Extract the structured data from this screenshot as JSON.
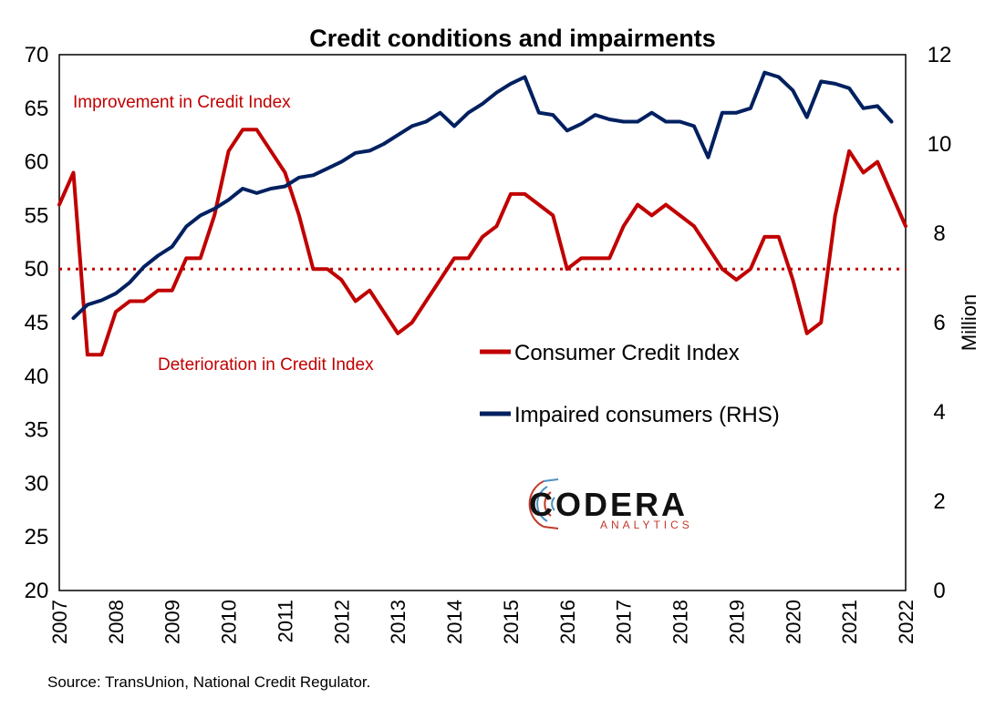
{
  "chart_data": {
    "type": "line",
    "title": "Credit conditions and impairments",
    "x_tick_labels": [
      "2007",
      "2008",
      "2009",
      "2010",
      "2011",
      "2012",
      "2013",
      "2014",
      "2015",
      "2016",
      "2017",
      "2018",
      "2019",
      "2020",
      "2021",
      "2022"
    ],
    "x_range": [
      2007,
      2022
    ],
    "y_left": {
      "range": [
        20,
        70
      ],
      "ticks": [
        20,
        25,
        30,
        35,
        40,
        45,
        50,
        55,
        60,
        65,
        70
      ]
    },
    "y_right": {
      "range": [
        0,
        12
      ],
      "ticks": [
        0,
        2,
        4,
        6,
        8,
        10,
        12
      ],
      "label": "Million"
    },
    "reference_line": {
      "value": 50,
      "axis": "left",
      "style": "dotted",
      "color": "#c00000"
    },
    "annotations": {
      "upper": "Improvement in Credit Index",
      "lower": "Deterioration in Credit Index"
    },
    "legend_position": "center-right",
    "grid": false,
    "series": [
      {
        "name": "Consumer Credit Index",
        "axis": "left",
        "color": "#c00000",
        "x": [
          2007.0,
          2007.25,
          2007.5,
          2007.75,
          2008.0,
          2008.25,
          2008.5,
          2008.75,
          2009.0,
          2009.25,
          2009.5,
          2009.75,
          2010.0,
          2010.25,
          2010.5,
          2010.75,
          2011.0,
          2011.25,
          2011.5,
          2011.75,
          2012.0,
          2012.25,
          2012.5,
          2012.75,
          2013.0,
          2013.25,
          2013.5,
          2013.75,
          2014.0,
          2014.25,
          2014.5,
          2014.75,
          2015.0,
          2015.25,
          2015.5,
          2015.75,
          2016.0,
          2016.25,
          2016.5,
          2016.75,
          2017.0,
          2017.25,
          2017.5,
          2017.75,
          2018.0,
          2018.25,
          2018.5,
          2018.75,
          2019.0,
          2019.25,
          2019.5,
          2019.75,
          2020.0,
          2020.25,
          2020.5,
          2020.75,
          2021.0,
          2021.25,
          2021.5,
          2021.75,
          2022.0
        ],
        "values": [
          56,
          59,
          42,
          42,
          46,
          47,
          47,
          48,
          48,
          51,
          51,
          55,
          61,
          63,
          63,
          61,
          59,
          55,
          50,
          50,
          49,
          47,
          48,
          46,
          44,
          45,
          47,
          49,
          51,
          51,
          53,
          54,
          57,
          57,
          56,
          55,
          50,
          51,
          51,
          51,
          54,
          56,
          55,
          56,
          55,
          54,
          52,
          50,
          49,
          50,
          53,
          53,
          49,
          44,
          45,
          55,
          61,
          59,
          60,
          57,
          54
        ]
      },
      {
        "name": "Impaired consumers (RHS)",
        "axis": "right",
        "color": "#002060",
        "x": [
          2007.25,
          2007.5,
          2007.75,
          2008.0,
          2008.25,
          2008.5,
          2008.75,
          2009.0,
          2009.25,
          2009.5,
          2009.75,
          2010.0,
          2010.25,
          2010.5,
          2010.75,
          2011.0,
          2011.25,
          2011.5,
          2011.75,
          2012.0,
          2012.25,
          2012.5,
          2012.75,
          2013.0,
          2013.25,
          2013.5,
          2013.75,
          2014.0,
          2014.25,
          2014.5,
          2014.75,
          2015.0,
          2015.25,
          2015.5,
          2015.75,
          2016.0,
          2016.25,
          2016.5,
          2016.75,
          2017.0,
          2017.25,
          2017.5,
          2017.75,
          2018.0,
          2018.25,
          2018.5,
          2018.75,
          2019.0,
          2019.25,
          2019.5,
          2019.75,
          2020.0,
          2020.25,
          2020.5,
          2020.75,
          2021.0,
          2021.25,
          2021.5,
          2021.75
        ],
        "values": [
          6.1,
          6.4,
          6.5,
          6.65,
          6.9,
          7.25,
          7.5,
          7.7,
          8.15,
          8.4,
          8.55,
          8.75,
          9.0,
          8.9,
          9.0,
          9.05,
          9.25,
          9.3,
          9.45,
          9.6,
          9.8,
          9.85,
          10.0,
          10.2,
          10.4,
          10.5,
          10.7,
          10.4,
          10.7,
          10.9,
          11.15,
          11.35,
          11.5,
          10.7,
          10.65,
          10.3,
          10.45,
          10.65,
          10.55,
          10.5,
          10.5,
          10.7,
          10.5,
          10.5,
          10.4,
          9.7,
          10.7,
          10.7,
          10.8,
          11.6,
          11.5,
          11.2,
          10.6,
          11.4,
          11.35,
          11.25,
          10.8,
          10.85,
          10.5
        ]
      }
    ]
  },
  "source_note": "Source: TransUnion, National Credit Regulator.",
  "logo": {
    "name": "CODERA",
    "subtitle": "ANALYTICS"
  }
}
